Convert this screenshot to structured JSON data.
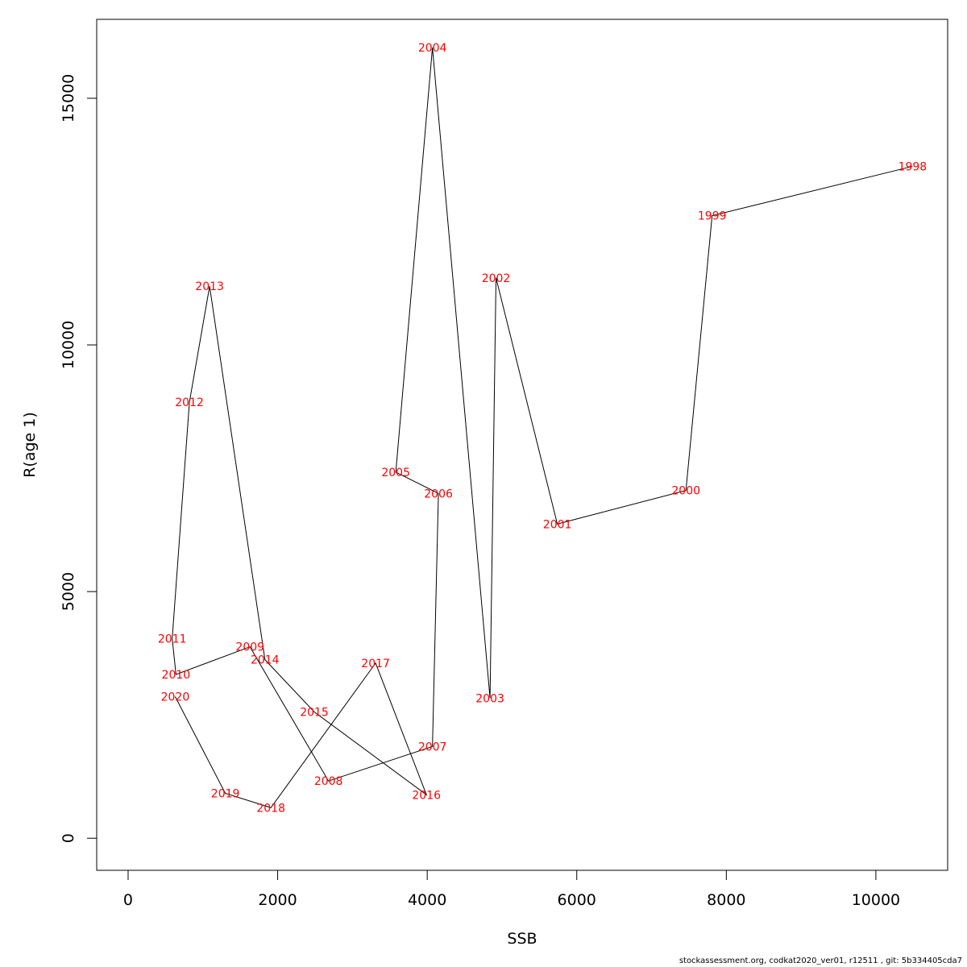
{
  "footer": "stockassessment.org, codkat2020_ver01, r12511 , git: 5b334405cda7",
  "colors": {
    "label": "#ff0000",
    "line": "#000000",
    "axis": "#000000",
    "background": "#ffffff"
  },
  "chart_data": {
    "type": "line",
    "title": "",
    "xlabel": "SSB",
    "ylabel": "R(age 1)",
    "xlim": [
      -420,
      10960
    ],
    "ylim": [
      -650,
      16600
    ],
    "xticks": [
      0,
      2000,
      4000,
      6000,
      8000,
      10000
    ],
    "xtick_labels": [
      "0",
      "2000",
      "4000",
      "6000",
      "8000",
      "10000"
    ],
    "yticks": [
      0,
      5000,
      10000,
      15000
    ],
    "ytick_labels": [
      "0",
      "5000",
      "10000",
      "15000"
    ],
    "grid": false,
    "legend": "none",
    "series": [
      {
        "points": [
          {
            "label": "1998",
            "x": 10490,
            "y": 13620
          },
          {
            "label": "1999",
            "x": 7810,
            "y": 12620
          },
          {
            "label": "2000",
            "x": 7460,
            "y": 7050
          },
          {
            "label": "2001",
            "x": 5740,
            "y": 6370
          },
          {
            "label": "2002",
            "x": 4920,
            "y": 11360
          },
          {
            "label": "2003",
            "x": 4840,
            "y": 2840
          },
          {
            "label": "2004",
            "x": 4070,
            "y": 16030
          },
          {
            "label": "2005",
            "x": 3580,
            "y": 7420
          },
          {
            "label": "2006",
            "x": 4150,
            "y": 6990
          },
          {
            "label": "2007",
            "x": 4070,
            "y": 1860
          },
          {
            "label": "2008",
            "x": 2680,
            "y": 1160
          },
          {
            "label": "2009",
            "x": 1630,
            "y": 3880
          },
          {
            "label": "2010",
            "x": 640,
            "y": 3320
          },
          {
            "label": "2011",
            "x": 590,
            "y": 4050
          },
          {
            "label": "2012",
            "x": 820,
            "y": 8840
          },
          {
            "label": "2013",
            "x": 1090,
            "y": 11190
          },
          {
            "label": "2014",
            "x": 1830,
            "y": 3620
          },
          {
            "label": "2015",
            "x": 2490,
            "y": 2560
          },
          {
            "label": "2016",
            "x": 3990,
            "y": 880
          },
          {
            "label": "2017",
            "x": 3310,
            "y": 3550
          },
          {
            "label": "2018",
            "x": 1910,
            "y": 620
          },
          {
            "label": "2019",
            "x": 1300,
            "y": 910
          },
          {
            "label": "2020",
            "x": 630,
            "y": 2870
          }
        ]
      }
    ]
  }
}
